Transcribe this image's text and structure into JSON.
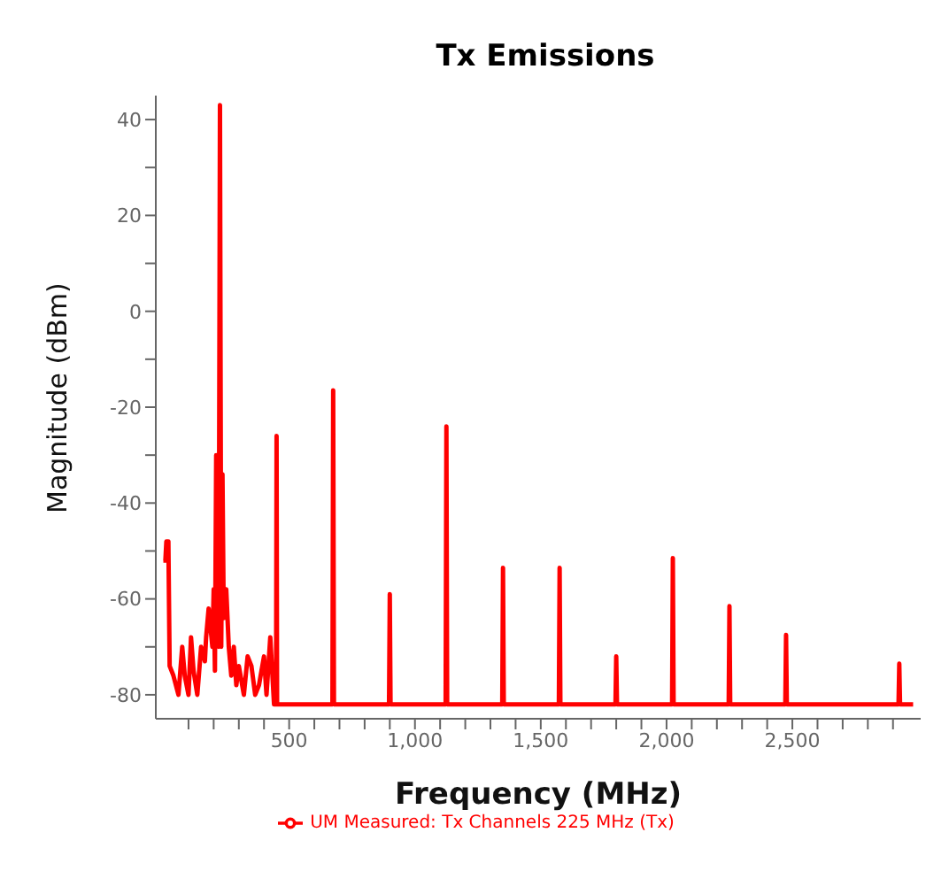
{
  "chart_data": {
    "type": "line",
    "title": "Tx Emissions",
    "xlabel": "Frequency (MHz)",
    "ylabel": "Magnitude (dBm)",
    "xlim": [
      -30,
      3010
    ],
    "ylim": [
      -85,
      45
    ],
    "xticks": [
      {
        "value": 100,
        "label": null
      },
      {
        "value": 200,
        "label": null
      },
      {
        "value": 300,
        "label": null
      },
      {
        "value": 400,
        "label": null
      },
      500,
      {
        "value": 600,
        "label": null
      },
      {
        "value": 700,
        "label": null
      },
      {
        "value": 800,
        "label": null
      },
      {
        "value": 900,
        "label": null
      },
      {
        "value": 1000,
        "label": "1,000"
      },
      {
        "value": 1100,
        "label": null
      },
      {
        "value": 1200,
        "label": null
      },
      {
        "value": 1300,
        "label": null
      },
      {
        "value": 1400,
        "label": null
      },
      {
        "value": 1500,
        "label": "1,500"
      },
      {
        "value": 1600,
        "label": null
      },
      {
        "value": 1700,
        "label": null
      },
      {
        "value": 1800,
        "label": null
      },
      {
        "value": 1900,
        "label": null
      },
      {
        "value": 2000,
        "label": "2,000"
      },
      {
        "value": 2100,
        "label": null
      },
      {
        "value": 2200,
        "label": null
      },
      {
        "value": 2300,
        "label": null
      },
      {
        "value": 2400,
        "label": null
      },
      {
        "value": 2500,
        "label": "2,500"
      },
      {
        "value": 2600,
        "label": null
      },
      {
        "value": 2700,
        "label": null
      },
      {
        "value": 2800,
        "label": null
      },
      {
        "value": 2900,
        "label": null
      }
    ],
    "yticks": [
      -80,
      {
        "value": -70,
        "label": null
      },
      -60,
      {
        "value": -50,
        "label": null
      },
      -40,
      {
        "value": -30,
        "label": null
      },
      -20,
      {
        "value": -10,
        "label": null
      },
      0,
      {
        "value": 10,
        "label": null
      },
      20,
      {
        "value": 30,
        "label": null
      },
      40
    ],
    "grid": false,
    "legend": "bottom",
    "marker": "none",
    "line_style": "solid",
    "series": [
      {
        "name": "UM Measured: Tx Channels 225 MHz (Tx)",
        "color": "#ff0000",
        "x": [
          0,
          8,
          12,
          20,
          25,
          40,
          60,
          75,
          85,
          100,
          110,
          120,
          135,
          150,
          165,
          170,
          180,
          195,
          200,
          205,
          210,
          215,
          220,
          225,
          230,
          235,
          240,
          250,
          260,
          270,
          280,
          290,
          300,
          320,
          335,
          350,
          365,
          380,
          400,
          410,
          425,
          440,
          448,
          450,
          452,
          460,
          600,
          672,
          675,
          678,
          700,
          897,
          900,
          903,
          1000,
          1122,
          1125,
          1128,
          1347,
          1350,
          1353,
          1572,
          1575,
          1578,
          1797,
          1800,
          1803,
          2022,
          2025,
          2028,
          2247,
          2250,
          2253,
          2300,
          2472,
          2475,
          2478,
          2697,
          2700,
          2703,
          2922,
          2925,
          2928,
          2980
        ],
        "values": [
          -52,
          -52,
          -48,
          -48,
          -74,
          -76,
          -80,
          -70,
          -76,
          -80,
          -68,
          -75,
          -80,
          -70,
          -73,
          -68,
          -62,
          -70,
          -58,
          -75,
          -30,
          -34,
          -70,
          43,
          -70,
          -34,
          -64,
          -58,
          -70,
          -76,
          -70,
          -78,
          -74,
          -80,
          -72,
          -74,
          -80,
          -78,
          -72,
          -80,
          -68,
          -82,
          -82,
          -26,
          -82,
          -82,
          -82,
          -82,
          -16.5,
          -82,
          -82,
          -82,
          -59,
          -82,
          -82,
          -82,
          -24,
          -82,
          -82,
          -53.5,
          -82,
          -82,
          -53.5,
          -82,
          -82,
          -72,
          -82,
          -82,
          -51.5,
          -82,
          -82,
          -61.5,
          -82,
          -82,
          -82,
          -67.5,
          -82,
          -82,
          -82,
          -82,
          -82,
          -73.5,
          -82,
          -82
        ]
      }
    ]
  }
}
